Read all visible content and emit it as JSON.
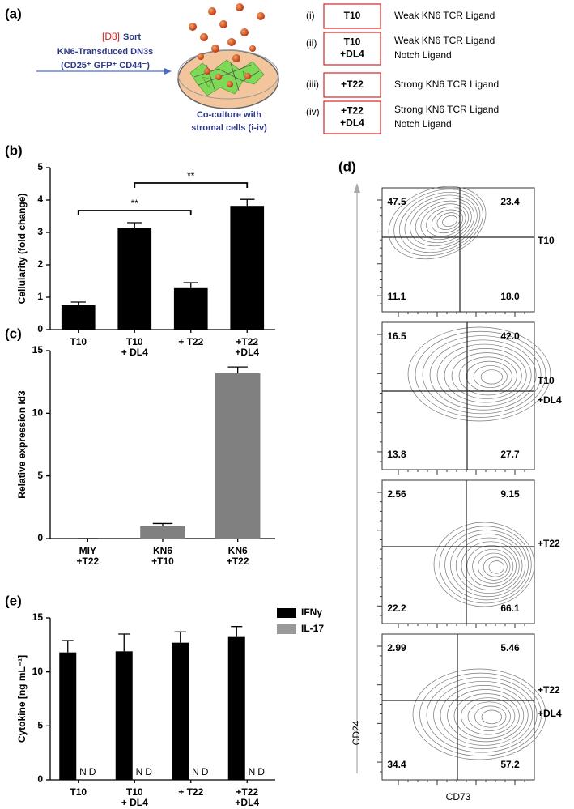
{
  "panel_a": {
    "label": "(a)",
    "sort_day": "[D8]",
    "sort": "Sort",
    "population": "KN6-Transduced DN3s",
    "markers": "(CD25⁺ GFP⁺ CD44⁻)",
    "coculture": [
      "Co-culture with",
      "stromal cells (i-iv)"
    ],
    "conditions": [
      {
        "numeral": "(i)",
        "box": [
          "T10"
        ],
        "description": [
          "Weak KN6 TCR Ligand"
        ]
      },
      {
        "numeral": "(ii)",
        "box": [
          "T10",
          "+DL4"
        ],
        "description": [
          "Weak KN6 TCR Ligand",
          "Notch Ligand"
        ]
      },
      {
        "numeral": "(iii)",
        "box": [
          "+T22"
        ],
        "description": [
          "Strong KN6 TCR Ligand"
        ]
      },
      {
        "numeral": "(iv)",
        "box": [
          "+T22",
          "+DL4"
        ],
        "description": [
          "Strong KN6 TCR Ligand",
          "Notch Ligand"
        ]
      }
    ]
  },
  "chart_data": [
    {
      "type": "bar",
      "label": "(b)",
      "ylabel": "Cellularity (fold change)",
      "categories": [
        "T10",
        "T10\n+ DL4",
        "+ T22",
        "+T22\n+DL4"
      ],
      "values": [
        0.75,
        3.15,
        1.28,
        3.82
      ],
      "errors": [
        0.1,
        0.15,
        0.17,
        0.2
      ],
      "color": "#000000",
      "ylim": [
        0,
        5
      ],
      "yticks": [
        0,
        1,
        2,
        3,
        4,
        5
      ],
      "annotations": [
        {
          "text": "**"
        },
        {
          "text": "**"
        }
      ]
    },
    {
      "type": "bar",
      "label": "(c)",
      "ylabel": "Relative expression Id3",
      "categories": [
        "MIY\n+T22",
        "KN6\n+T10",
        "KN6\n+T22"
      ],
      "values": [
        0,
        1.0,
        13.2
      ],
      "errors": [
        0,
        0.2,
        0.5
      ],
      "color": "#808080",
      "ylim": [
        0,
        15
      ],
      "yticks": [
        0,
        5,
        10,
        15
      ]
    },
    {
      "type": "bar",
      "label": "(e)",
      "ylabel": "Cytokine [ng mL⁻¹]",
      "categories": [
        "T10",
        "T10\n+ DL4",
        "+ T22",
        "+T22\n+DL4"
      ],
      "series": [
        {
          "name": "IFNγ",
          "color": "#000000",
          "values": [
            11.8,
            11.9,
            12.7,
            13.3
          ],
          "errors": [
            1.1,
            1.6,
            1.0,
            0.9
          ]
        },
        {
          "name": "IL-17",
          "color": "#999999",
          "values": [
            null,
            null,
            null,
            null
          ],
          "value_labels": [
            "ND",
            "ND",
            "ND",
            "ND"
          ]
        }
      ],
      "ylim": [
        0,
        15
      ],
      "yticks": [
        0,
        5,
        10,
        15
      ]
    }
  ],
  "panel_d": {
    "label": "(d)",
    "ylabel": "CD24",
    "xlabel": "CD73",
    "plots": [
      {
        "sample": [
          "T10"
        ],
        "quadrants": [
          "47.5",
          "23.4",
          "11.1",
          "18.0"
        ]
      },
      {
        "sample": [
          "T10",
          "+DL4"
        ],
        "quadrants": [
          "16.5",
          "42.0",
          "13.8",
          "27.7"
        ]
      },
      {
        "sample": [
          "+T22"
        ],
        "quadrants": [
          "2.56",
          "9.15",
          "22.2",
          "66.1"
        ]
      },
      {
        "sample": [
          "+T22",
          "+DL4"
        ],
        "quadrants": [
          "2.99",
          "5.46",
          "34.4",
          "57.2"
        ]
      }
    ]
  }
}
